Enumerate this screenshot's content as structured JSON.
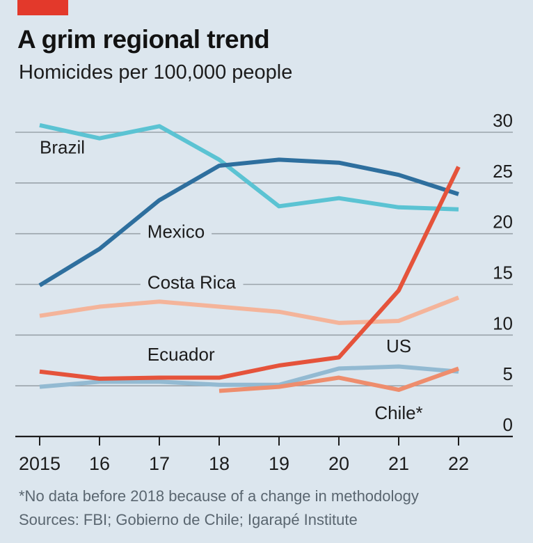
{
  "header": {
    "title": "A grim regional trend",
    "subtitle": "Homicides per 100,000 people"
  },
  "footer": {
    "footnote": "*No data before 2018 because of a change in methodology",
    "source": "Sources: FBI; Gobierno de Chile; Igarapé Institute"
  },
  "chart_data": {
    "type": "line",
    "title": "A grim regional trend",
    "subtitle": "Homicides per 100,000 people",
    "xlabel": "",
    "ylabel": "Homicides per 100,000 people",
    "x": [
      2015,
      2016,
      2017,
      2018,
      2019,
      2020,
      2021,
      2022
    ],
    "x_tick_labels": [
      "2015",
      "16",
      "17",
      "18",
      "19",
      "20",
      "21",
      "22"
    ],
    "ylim": [
      0,
      30
    ],
    "y_ticks": [
      0,
      5,
      10,
      15,
      20,
      25,
      30
    ],
    "y_tick_labels": [
      "0",
      "5",
      "10",
      "15",
      "20",
      "25",
      "30"
    ],
    "y_axis_side": "right",
    "grid": true,
    "legend": "inline-labels",
    "series": [
      {
        "name": "Brazil",
        "label": "Brazil",
        "color": "#5bc3d3",
        "values": [
          30.7,
          29.4,
          30.6,
          27.3,
          22.7,
          23.5,
          22.6,
          22.4
        ]
      },
      {
        "name": "Mexico",
        "label": "Mexico",
        "color": "#2e6f9e",
        "values": [
          14.9,
          18.5,
          23.3,
          26.7,
          27.3,
          27.0,
          25.8,
          23.9
        ]
      },
      {
        "name": "Costa Rica",
        "label": "Costa Rica",
        "color": "#f4b49a",
        "values": [
          11.9,
          12.8,
          13.3,
          12.8,
          12.3,
          11.2,
          11.4,
          13.7
        ]
      },
      {
        "name": "US",
        "label": "US",
        "color": "#93bad2",
        "values": [
          4.9,
          5.4,
          5.4,
          5.1,
          5.1,
          6.7,
          6.9,
          6.4
        ]
      },
      {
        "name": "Chile",
        "label": "Chile*",
        "color": "#ee8d6d",
        "values": [
          null,
          null,
          null,
          4.5,
          4.9,
          5.8,
          4.6,
          6.7
        ]
      },
      {
        "name": "Ecuador",
        "label": "Ecuador",
        "color": "#e5533b",
        "values": [
          6.4,
          5.7,
          5.8,
          5.8,
          7.0,
          7.8,
          14.4,
          26.6
        ]
      }
    ]
  }
}
